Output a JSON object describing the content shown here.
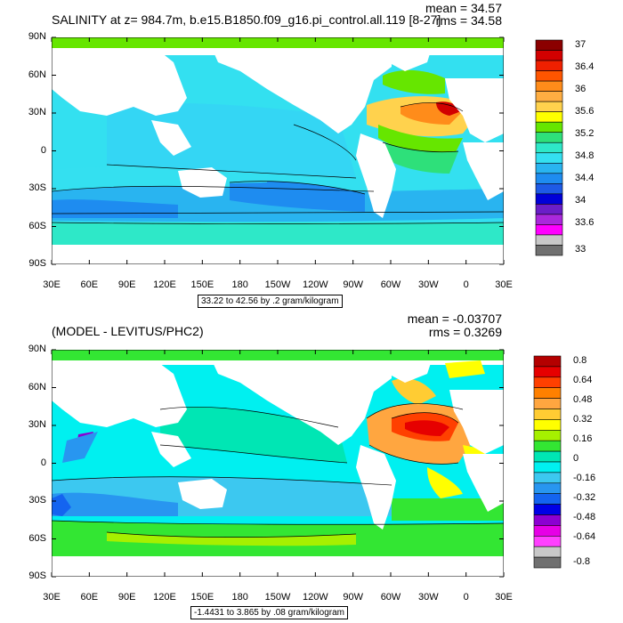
{
  "panels": [
    {
      "title": "SALINITY at z= 984.7m, b.e15.B1850.f09_g16.pi_control.all.119 [8-27]",
      "mean_label": "mean = 34.57",
      "rms_label": "rms = 34.58",
      "range_label": "33.22 to 42.56 by .2 gram/kilogram",
      "lat_labels": [
        "90N",
        "60N",
        "30N",
        "0",
        "30S",
        "60S",
        "90S"
      ],
      "lon_labels": [
        "30E",
        "60E",
        "90E",
        "120E",
        "150E",
        "180",
        "150W",
        "120W",
        "90W",
        "60W",
        "30W",
        "0",
        "30E"
      ],
      "colorbar": {
        "colors": [
          "#8b0000",
          "#d20000",
          "#f02000",
          "#ff5500",
          "#ff8c1a",
          "#ffae42",
          "#ffd24d",
          "#ffff00",
          "#66e600",
          "#2ee07a",
          "#2ee8c8",
          "#34e0f0",
          "#29b4f0",
          "#1e8cf0",
          "#1e5ae6",
          "#0000d8",
          "#6a1ec8",
          "#aa28dc",
          "#ff00ff",
          "#c8c8c8",
          "#707070"
        ],
        "labels": [
          "37",
          "36.4",
          "36",
          "35.6",
          "35.2",
          "34.8",
          "34.4",
          "34",
          "33.6",
          "33"
        ]
      }
    },
    {
      "title": "(MODEL - LEVITUS/PHC2)",
      "mean_label": "mean = -0.03707",
      "rms_label": "rms = 0.3269",
      "range_label": "-1.4431 to 3.865 by .08 gram/kilogram",
      "lat_labels": [
        "90N",
        "60N",
        "30N",
        "0",
        "30S",
        "60S",
        "90S"
      ],
      "lon_labels": [
        "30E",
        "60E",
        "90E",
        "120E",
        "150E",
        "180",
        "150W",
        "120W",
        "90W",
        "60W",
        "30W",
        "0",
        "30E"
      ],
      "colorbar": {
        "colors": [
          "#b40000",
          "#e60000",
          "#ff4000",
          "#ff8000",
          "#ffa640",
          "#ffcc33",
          "#ffff00",
          "#a6f000",
          "#33e633",
          "#00e6b4",
          "#00f0f0",
          "#3cc8f0",
          "#2896f0",
          "#1464f0",
          "#0000e6",
          "#8c00d2",
          "#e600e6",
          "#ff40ff",
          "#c8c8c8",
          "#707070"
        ],
        "labels": [
          "0.8",
          "0.64",
          "0.48",
          "0.32",
          "0.16",
          "0",
          "-0.16",
          "-0.32",
          "-0.48",
          "-0.64",
          "-0.8"
        ]
      }
    }
  ]
}
